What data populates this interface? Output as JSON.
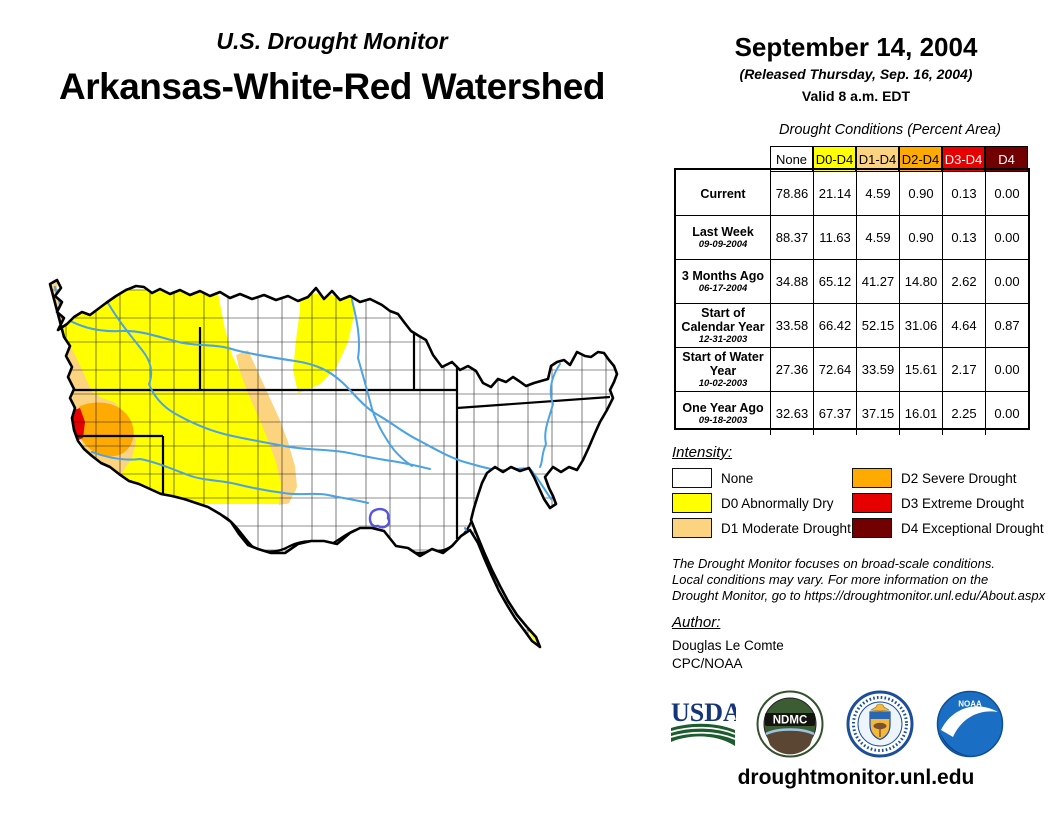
{
  "header": {
    "monitor_title": "U.S. Drought Monitor",
    "region_title": "Arkansas-White-Red Watershed"
  },
  "date_block": {
    "date": "September 14, 2004",
    "released": "(Released Thursday, Sep. 16, 2004)",
    "valid": "Valid 8 a.m. EDT"
  },
  "table": {
    "title": "Drought Conditions (Percent Area)",
    "columns": [
      {
        "label": "None",
        "bg": "#FFFFFF",
        "fg": "#000000"
      },
      {
        "label": "D0-D4",
        "bg": "#FFFF00",
        "fg": "#000000"
      },
      {
        "label": "D1-D4",
        "bg": "#FCD37F",
        "fg": "#000000"
      },
      {
        "label": "D2-D4",
        "bg": "#FFAA00",
        "fg": "#000000"
      },
      {
        "label": "D3-D4",
        "bg": "#E60000",
        "fg": "#FFFFFF"
      },
      {
        "label": "D4",
        "bg": "#730000",
        "fg": "#FFFFFF"
      }
    ],
    "rows": [
      {
        "label": "Current",
        "date": "",
        "values": [
          "78.86",
          "21.14",
          "4.59",
          "0.90",
          "0.13",
          "0.00"
        ]
      },
      {
        "label": "Last Week",
        "date": "09-09-2004",
        "values": [
          "88.37",
          "11.63",
          "4.59",
          "0.90",
          "0.13",
          "0.00"
        ]
      },
      {
        "label": "3 Months Ago",
        "date": "06-17-2004",
        "values": [
          "34.88",
          "65.12",
          "41.27",
          "14.80",
          "2.62",
          "0.00"
        ]
      },
      {
        "label": "Start of Calendar Year",
        "date": "12-31-2003",
        "values": [
          "33.58",
          "66.42",
          "52.15",
          "31.06",
          "4.64",
          "0.87"
        ]
      },
      {
        "label": "Start of Water Year",
        "date": "10-02-2003",
        "values": [
          "27.36",
          "72.64",
          "33.59",
          "15.61",
          "2.17",
          "0.00"
        ]
      },
      {
        "label": "One Year Ago",
        "date": "09-18-2003",
        "values": [
          "32.63",
          "67.37",
          "37.15",
          "16.01",
          "2.25",
          "0.00"
        ]
      }
    ]
  },
  "legend": {
    "title": "Intensity:",
    "items": [
      {
        "label": "None",
        "color": "#FFFFFF"
      },
      {
        "label": "D0 Abnormally Dry",
        "color": "#FFFF00"
      },
      {
        "label": "D1 Moderate Drought",
        "color": "#FCD37F"
      },
      {
        "label": "D2 Severe Drought",
        "color": "#FFAA00"
      },
      {
        "label": "D3 Extreme Drought",
        "color": "#E60000"
      },
      {
        "label": "D4 Exceptional Drought",
        "color": "#730000"
      }
    ]
  },
  "disclaimer": {
    "lines": [
      "The Drought Monitor focuses on broad-scale conditions.",
      "Local conditions may vary. For more information on the",
      "Drought Monitor, go to https://droughtmonitor.unl.edu/About.aspx"
    ]
  },
  "author": {
    "title": "Author:",
    "name": "Douglas Le Comte",
    "org": "CPC/NOAA"
  },
  "footer": {
    "url": "droughtmonitor.unl.edu",
    "logos_text": {
      "usda": "USDA",
      "ndmc": "NDMC",
      "noaa": "NOAA"
    }
  },
  "colors": {
    "none": "#FFFFFF",
    "d0": "#FFFF00",
    "d1": "#FCD37F",
    "d2": "#FFAA00",
    "d3": "#E60000",
    "d4": "#730000",
    "river": "#4BA3E3",
    "lake": "#5757D8",
    "boundary": "#000000"
  }
}
